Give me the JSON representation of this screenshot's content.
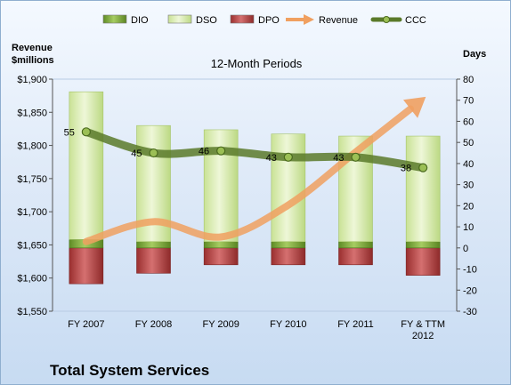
{
  "chart_data": {
    "type": "bar",
    "title": "12-Month Periods",
    "company": "Total System Services",
    "left_axis_title_line1": "Revenue",
    "left_axis_title_line2": "$millions",
    "right_axis_title": "Days",
    "categories": [
      [
        "FY 2007"
      ],
      [
        "FY 2008"
      ],
      [
        "FY 2009"
      ],
      [
        "FY 2010"
      ],
      [
        "FY 2011"
      ],
      [
        "FY & TTM",
        "2012"
      ]
    ],
    "left_axis": {
      "min": 1550,
      "max": 1900,
      "step": 50,
      "tick_format": "$#,###"
    },
    "right_axis": {
      "min": -30,
      "max": 80,
      "step": 10
    },
    "series": [
      {
        "name": "DIO",
        "type": "stacked-bar",
        "axis": "right",
        "color": "#7fae3c",
        "values": [
          4,
          3,
          3,
          3,
          3,
          3
        ]
      },
      {
        "name": "DSO",
        "type": "stacked-bar",
        "axis": "right",
        "color": "#d8ebb0",
        "values": [
          70,
          55,
          53,
          51,
          50,
          50
        ]
      },
      {
        "name": "DPO",
        "type": "stacked-bar-negative",
        "axis": "right",
        "color": "#b84a4a",
        "values": [
          -17,
          -12,
          -8,
          -8,
          -8,
          -13
        ]
      },
      {
        "name": "Revenue",
        "type": "line",
        "axis": "left",
        "color": "#f0a060",
        "values": [
          1655,
          1685,
          1662,
          1710,
          1790,
          1870
        ]
      },
      {
        "name": "CCC",
        "type": "line",
        "axis": "right",
        "color": "#5a7a2a",
        "values": [
          55,
          45,
          46,
          43,
          43,
          38
        ],
        "labels": [
          "55",
          "45",
          "46",
          "43",
          "43",
          "38"
        ]
      }
    ],
    "legend_position": "top",
    "grid": false
  }
}
